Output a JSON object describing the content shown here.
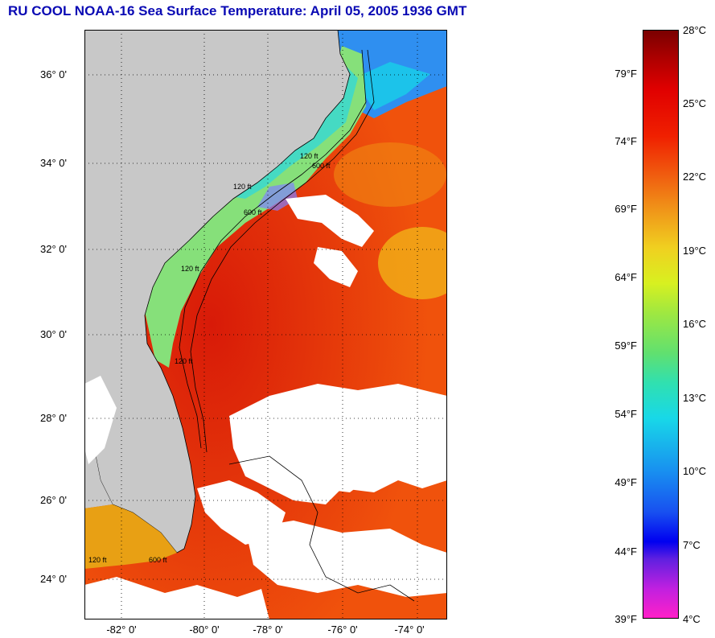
{
  "title": "RU COOL  NOAA-16  Sea Surface Temperature:  April 05, 2005 1936 GMT",
  "map": {
    "lat_labels": [
      "36° 0'",
      "34° 0'",
      "32° 0'",
      "30° 0'",
      "28° 0'",
      "26° 0'",
      "24° 0'"
    ],
    "lon_labels": [
      "-82° 0'",
      "-80° 0'",
      "-78° 0'",
      "-76° 0'",
      "-74° 0'"
    ],
    "isobath_labels": [
      "120 ft",
      "600 ft",
      "120 ft",
      "600 ft",
      "120 ft",
      "120 ft",
      "600 ft",
      "120 ft"
    ],
    "colors": {
      "land": "#c8c8c8",
      "cloud": "#ffffff",
      "gulf_stream": "#e8200a",
      "open_ocean": "#f06010",
      "shelf": "#7de08a",
      "cold_water": "#2090f0"
    }
  },
  "colorbar": {
    "celsius_labels": [
      "28°C",
      "25°C",
      "22°C",
      "19°C",
      "16°C",
      "13°C",
      "10°C",
      "7°C",
      "4°C"
    ],
    "fahrenheit_labels": [
      "79°F",
      "74°F",
      "69°F",
      "64°F",
      "59°F",
      "54°F",
      "49°F",
      "44°F",
      "39°F"
    ],
    "range_c": [
      4,
      28
    ],
    "range_f": [
      39,
      82
    ]
  }
}
